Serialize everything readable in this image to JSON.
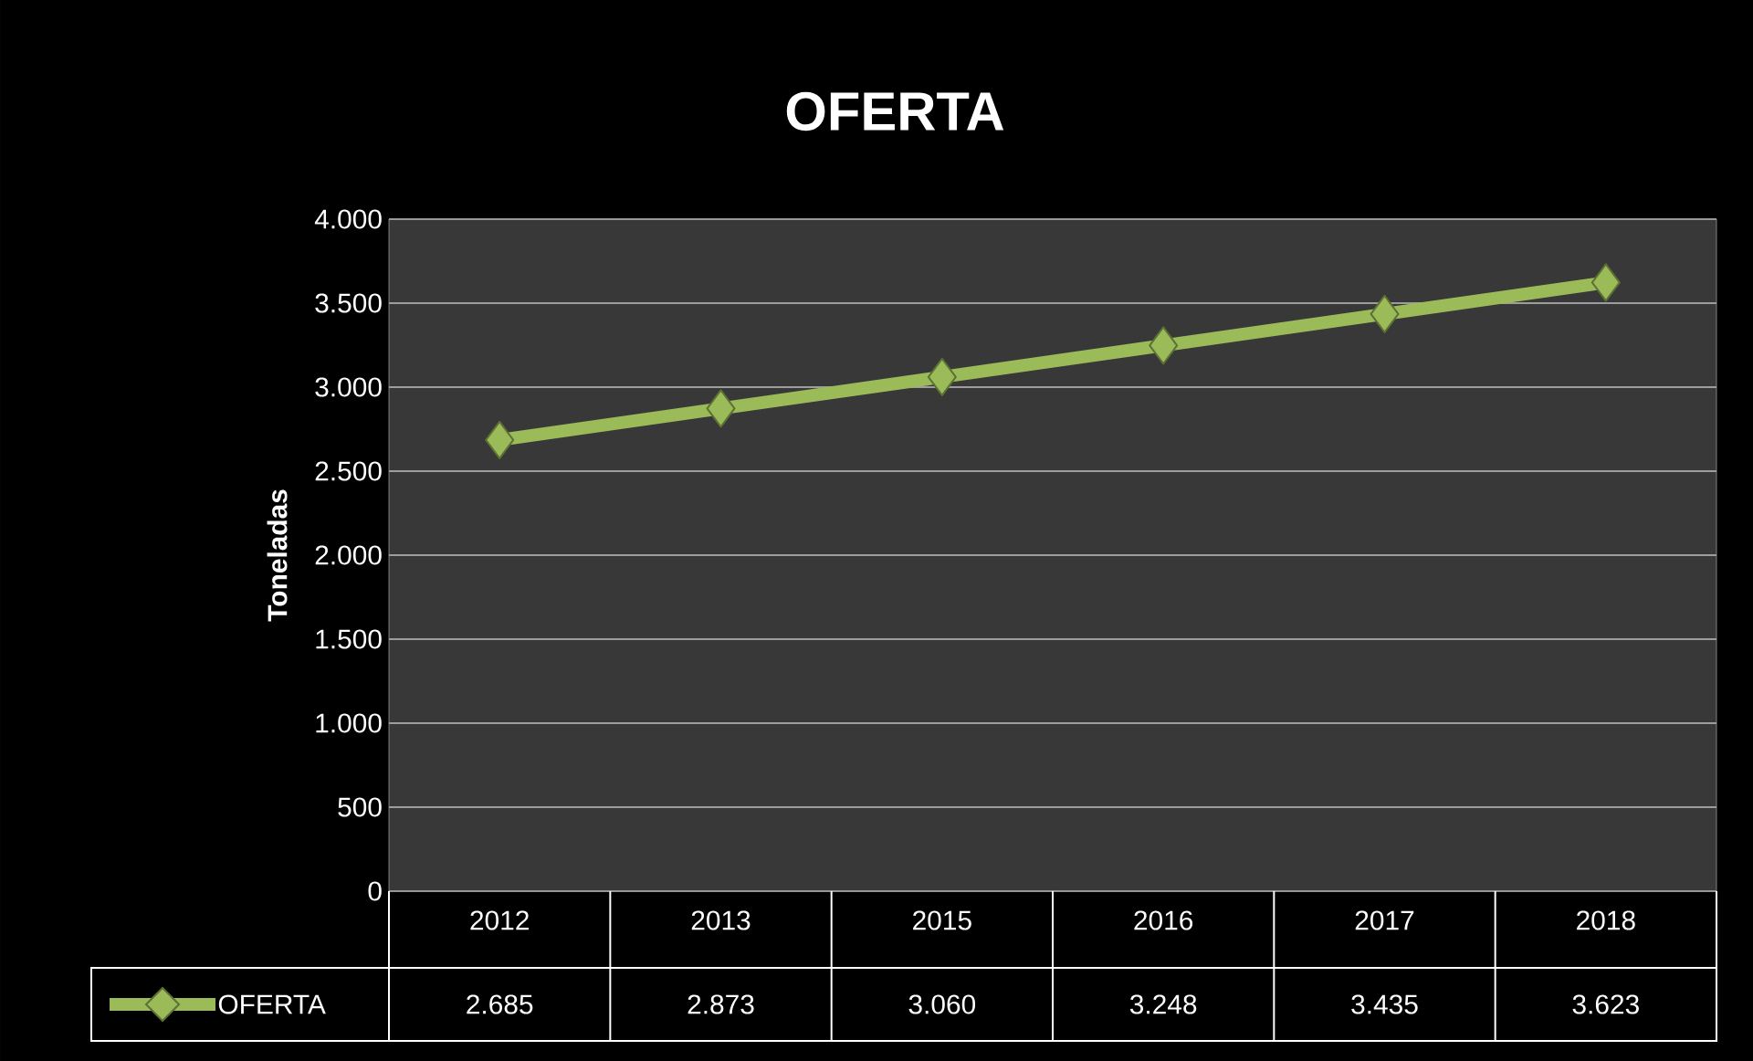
{
  "chart_data": {
    "type": "line",
    "title": "OFERTA",
    "ylabel": "Toneladas",
    "categories": [
      "2012",
      "2013",
      "2015",
      "2016",
      "2017",
      "2018"
    ],
    "series": [
      {
        "name": "OFERTA",
        "color": "#9bbb59",
        "values": [
          2685,
          2873,
          3060,
          3248,
          3435,
          3623
        ],
        "value_labels": [
          "2.685",
          "2.873",
          "3.060",
          "3.248",
          "3.435",
          "3.623"
        ]
      }
    ],
    "ylim": [
      0,
      4000
    ],
    "yticks": [
      0,
      {
        "value": 500,
        "label": "500"
      },
      {
        "value": 1000,
        "label": "1.000"
      },
      {
        "value": 1500,
        "label": "1.500"
      },
      {
        "value": 2000,
        "label": "2.000"
      },
      {
        "value": 2500,
        "label": "2.500"
      },
      {
        "value": 3000,
        "label": "3.000"
      },
      {
        "value": 3500,
        "label": "3.500"
      },
      {
        "value": 4000,
        "label": "4.000"
      }
    ],
    "grid": "y",
    "legend": "bottom",
    "marker": "diamond",
    "line_style": "solid"
  }
}
